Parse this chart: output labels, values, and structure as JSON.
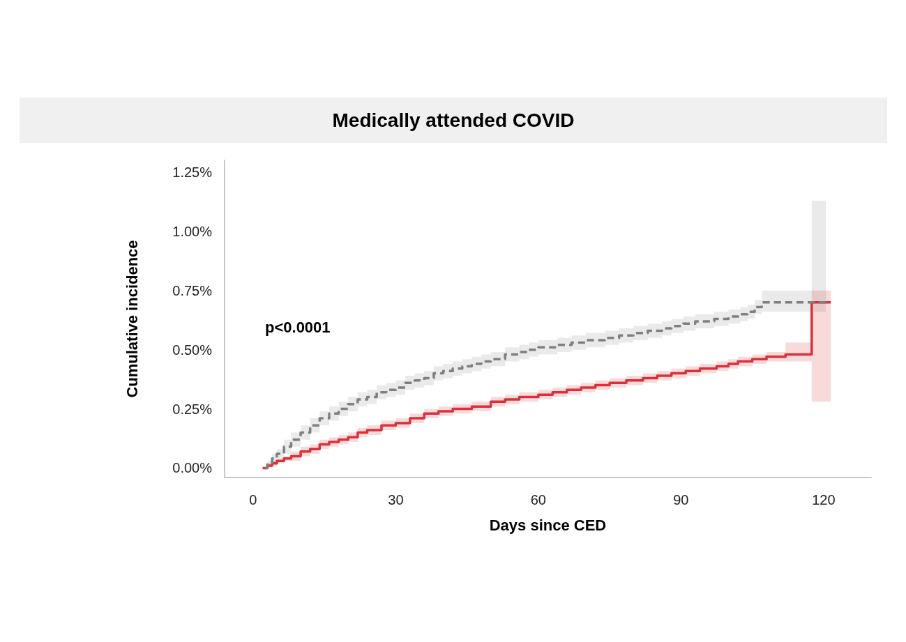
{
  "chart_data": {
    "type": "step",
    "title": "Medically attended COVID",
    "xlabel": "Days since CED",
    "ylabel": "Cumulative incidence",
    "annotations": [
      "p<0.0001"
    ],
    "xlim": [
      -6,
      130
    ],
    "xticks": [
      0,
      30,
      60,
      90,
      120
    ],
    "ylim": [
      -0.04,
      1.3
    ],
    "yticks": [
      {
        "value": 0,
        "label": "0.00%"
      },
      {
        "value": 0.25,
        "label": "0.25%"
      },
      {
        "value": 0.5,
        "label": "0.50%"
      },
      {
        "value": 0.75,
        "label": "0.75%"
      },
      {
        "value": 1,
        "label": "1.00%"
      },
      {
        "value": 1.25,
        "label": "1.25%"
      }
    ],
    "grid": false,
    "marker": "none",
    "series": [
      {
        "color": "#7f7f7f",
        "line_style": "dashed",
        "x": [
          2.5,
          3,
          4,
          5,
          6.5,
          8,
          10,
          12,
          14,
          16,
          18,
          20,
          22,
          24,
          26,
          28,
          30,
          32,
          34,
          36,
          38,
          40,
          42,
          44,
          46,
          48,
          50,
          53,
          56,
          58,
          60,
          62,
          64,
          67,
          70,
          74,
          77,
          80,
          83,
          86,
          88,
          90.5,
          93,
          97,
          100,
          102.5,
          104,
          105.5,
          107,
          117.5,
          120.5
        ],
        "values": [
          0,
          0.02,
          0.04,
          0.06,
          0.09,
          0.12,
          0.15,
          0.18,
          0.21,
          0.23,
          0.25,
          0.27,
          0.29,
          0.3,
          0.32,
          0.33,
          0.34,
          0.36,
          0.37,
          0.38,
          0.4,
          0.41,
          0.42,
          0.43,
          0.44,
          0.45,
          0.46,
          0.48,
          0.49,
          0.5,
          0.51,
          0.51,
          0.52,
          0.53,
          0.54,
          0.55,
          0.56,
          0.57,
          0.58,
          0.59,
          0.6,
          0.61,
          0.62,
          0.63,
          0.64,
          0.65,
          0.66,
          0.68,
          0.7,
          0.7,
          0.7
        ],
        "lower": [
          0,
          0.01,
          0.02,
          0.04,
          0.06,
          0.09,
          0.12,
          0.15,
          0.18,
          0.2,
          0.22,
          0.24,
          0.26,
          0.27,
          0.29,
          0.3,
          0.31,
          0.33,
          0.34,
          0.35,
          0.37,
          0.38,
          0.39,
          0.4,
          0.41,
          0.42,
          0.43,
          0.45,
          0.46,
          0.47,
          0.48,
          0.48,
          0.49,
          0.5,
          0.51,
          0.52,
          0.53,
          0.54,
          0.55,
          0.56,
          0.57,
          0.58,
          0.59,
          0.6,
          0.61,
          0.62,
          0.63,
          0.65,
          0.66,
          0.66,
          0.66
        ],
        "upper": [
          0,
          0.03,
          0.06,
          0.08,
          0.12,
          0.15,
          0.18,
          0.21,
          0.24,
          0.26,
          0.28,
          0.3,
          0.32,
          0.33,
          0.35,
          0.36,
          0.37,
          0.39,
          0.4,
          0.41,
          0.43,
          0.44,
          0.45,
          0.46,
          0.47,
          0.48,
          0.49,
          0.51,
          0.52,
          0.53,
          0.54,
          0.54,
          0.55,
          0.56,
          0.57,
          0.58,
          0.59,
          0.6,
          0.61,
          0.62,
          0.63,
          0.64,
          0.65,
          0.66,
          0.67,
          0.68,
          0.69,
          0.71,
          0.75,
          1.13,
          1.13
        ]
      },
      {
        "color": "#d9303a",
        "line_style": "solid",
        "x": [
          2,
          3,
          4,
          5,
          6.5,
          8,
          10,
          12,
          14,
          16,
          18,
          20,
          22,
          24,
          27,
          30,
          33,
          36,
          39,
          42,
          46,
          50,
          53,
          56,
          60,
          63,
          66,
          69,
          72,
          75,
          78.5,
          82,
          85,
          88,
          91,
          94,
          97.5,
          100,
          102,
          105,
          108,
          112,
          117.5,
          121.5
        ],
        "values": [
          0,
          0.01,
          0.02,
          0.03,
          0.04,
          0.05,
          0.07,
          0.08,
          0.1,
          0.11,
          0.12,
          0.13,
          0.15,
          0.16,
          0.18,
          0.19,
          0.21,
          0.23,
          0.24,
          0.25,
          0.26,
          0.28,
          0.29,
          0.3,
          0.31,
          0.32,
          0.33,
          0.34,
          0.35,
          0.36,
          0.37,
          0.38,
          0.39,
          0.4,
          0.41,
          0.42,
          0.43,
          0.44,
          0.45,
          0.46,
          0.47,
          0.48,
          0.7,
          0.7
        ],
        "lower": [
          0,
          0,
          0.01,
          0.02,
          0.03,
          0.03,
          0.05,
          0.06,
          0.08,
          0.09,
          0.1,
          0.11,
          0.13,
          0.14,
          0.16,
          0.17,
          0.19,
          0.21,
          0.22,
          0.23,
          0.24,
          0.26,
          0.27,
          0.28,
          0.29,
          0.3,
          0.31,
          0.32,
          0.33,
          0.34,
          0.35,
          0.36,
          0.37,
          0.38,
          0.39,
          0.4,
          0.41,
          0.42,
          0.43,
          0.44,
          0.45,
          0.45,
          0.28,
          0.28
        ],
        "upper": [
          0,
          0.02,
          0.03,
          0.04,
          0.05,
          0.07,
          0.09,
          0.1,
          0.12,
          0.13,
          0.14,
          0.15,
          0.17,
          0.18,
          0.2,
          0.21,
          0.23,
          0.25,
          0.26,
          0.27,
          0.28,
          0.3,
          0.31,
          0.32,
          0.33,
          0.34,
          0.35,
          0.36,
          0.37,
          0.38,
          0.39,
          0.4,
          0.41,
          0.42,
          0.43,
          0.44,
          0.45,
          0.46,
          0.47,
          0.48,
          0.49,
          0.53,
          0.75,
          0.75
        ]
      }
    ]
  }
}
